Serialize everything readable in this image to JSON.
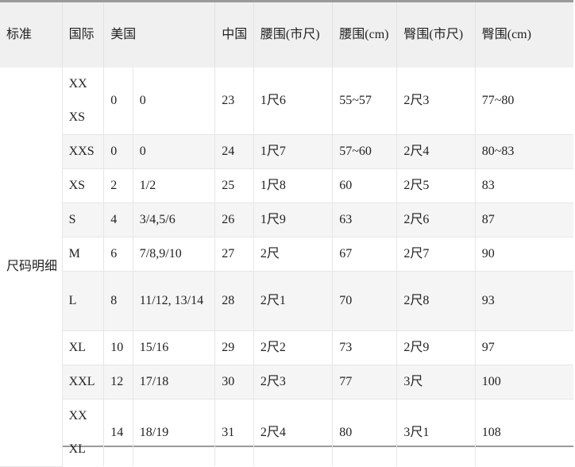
{
  "headers": {
    "standard": "标准",
    "intl": "国际",
    "us": "美国",
    "china": "中国",
    "waist_shi": "腰围(市尺)",
    "waist_cm": "腰围(cm)",
    "hip_shi": "臀围(市尺)",
    "hip_cm": "臀围(cm)"
  },
  "standard_label": "尺码明细",
  "rows": [
    {
      "intl": "XX XS",
      "us_num": "0",
      "us_size": "0",
      "china": "23",
      "waist_shi": "1尺6",
      "waist_cm": "55~57",
      "hip_shi": "2尺3",
      "hip_cm": "77~80"
    },
    {
      "intl": "XXS",
      "us_num": "0",
      "us_size": "0",
      "china": "24",
      "waist_shi": "1尺7",
      "waist_cm": "57~60",
      "hip_shi": "2尺4",
      "hip_cm": "80~83"
    },
    {
      "intl": "XS",
      "us_num": "2",
      "us_size": "1/2",
      "china": "25",
      "waist_shi": "1尺8",
      "waist_cm": "60",
      "hip_shi": "2尺5",
      "hip_cm": "83"
    },
    {
      "intl": "S",
      "us_num": "4",
      "us_size": "3/4,5/6",
      "china": "26",
      "waist_shi": "1尺9",
      "waist_cm": "63",
      "hip_shi": "2尺6",
      "hip_cm": "87"
    },
    {
      "intl": "M",
      "us_num": "6",
      "us_size": "7/8,9/10",
      "china": "27",
      "waist_shi": "2尺",
      "waist_cm": "67",
      "hip_shi": "2尺7",
      "hip_cm": "90"
    },
    {
      "intl": "L",
      "us_num": "8",
      "us_size": "11/12, 13/14",
      "china": "28",
      "waist_shi": "2尺1",
      "waist_cm": "70",
      "hip_shi": "2尺8",
      "hip_cm": "93"
    },
    {
      "intl": "XL",
      "us_num": "10",
      "us_size": "15/16",
      "china": "29",
      "waist_shi": "2尺2",
      "waist_cm": "73",
      "hip_shi": "2尺9",
      "hip_cm": "97"
    },
    {
      "intl": "XXL",
      "us_num": "12",
      "us_size": "17/18",
      "china": "30",
      "waist_shi": "2尺3",
      "waist_cm": "77",
      "hip_shi": "3尺",
      "hip_cm": "100"
    },
    {
      "intl": "XX XL",
      "us_num": "14",
      "us_size": "18/19",
      "china": "31",
      "waist_shi": "2尺4",
      "waist_cm": "80",
      "hip_shi": "3尺1",
      "hip_cm": "108"
    }
  ]
}
